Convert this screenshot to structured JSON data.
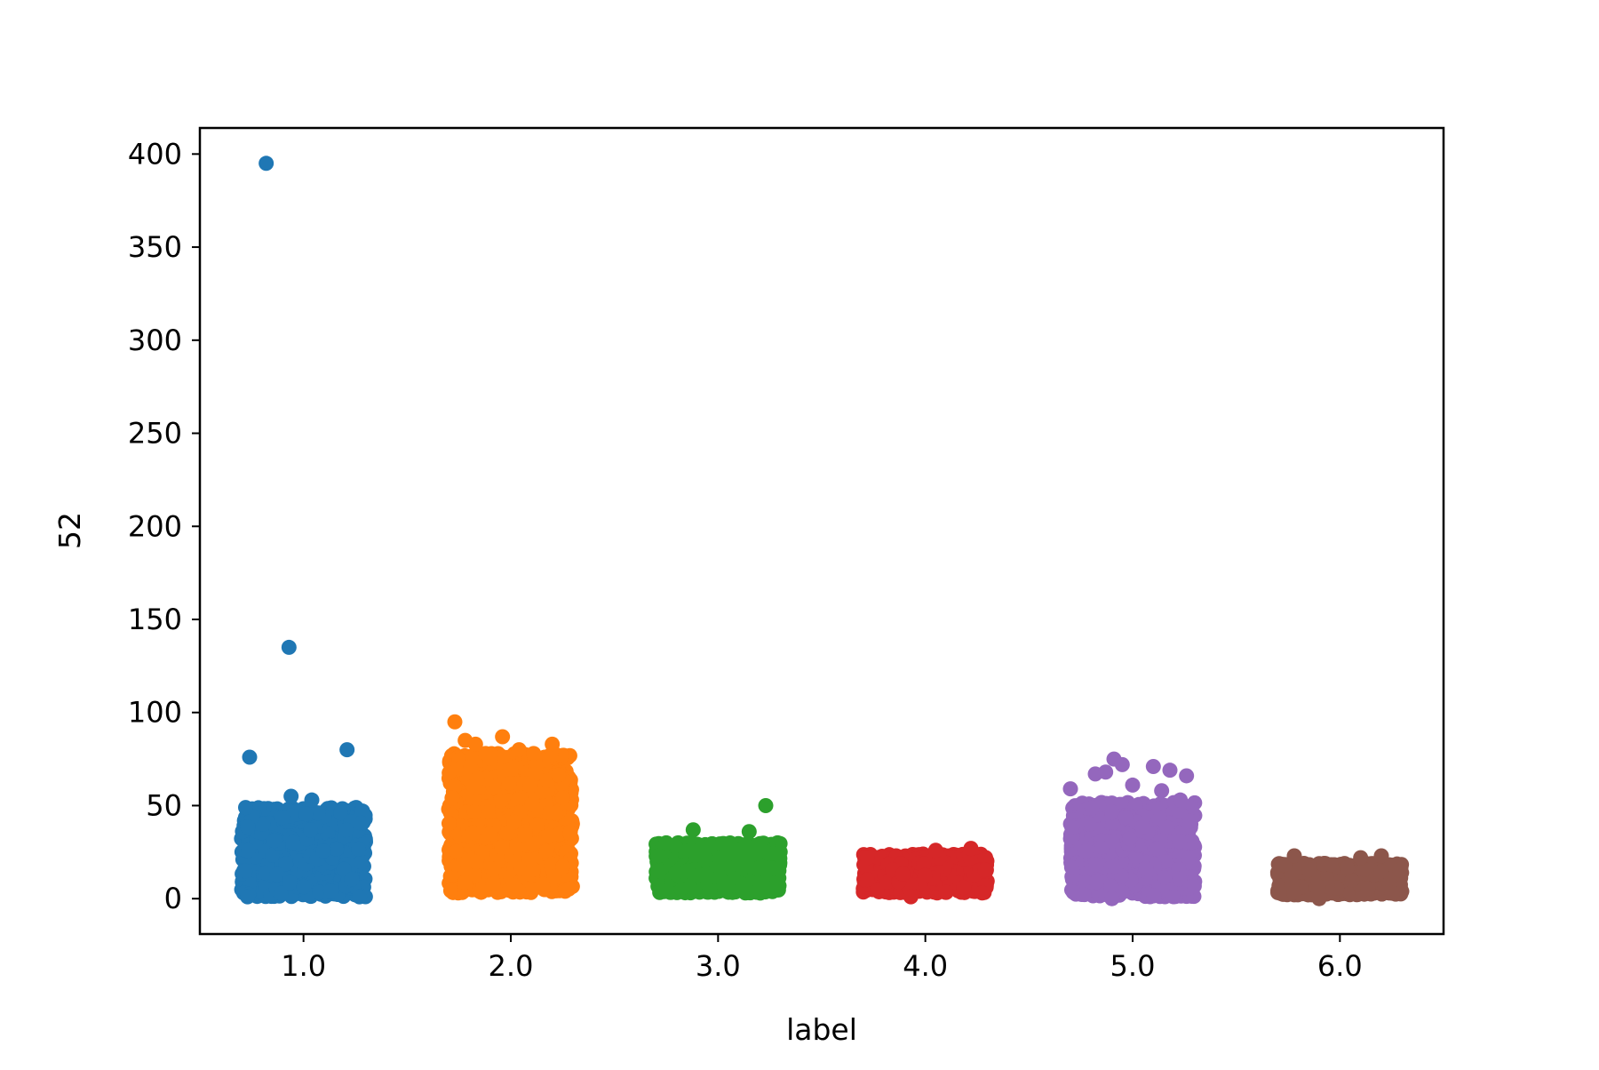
{
  "chart_data": {
    "type": "scatter",
    "title": "",
    "xlabel": "label",
    "ylabel": "52",
    "xlim": [
      0.5,
      6.5
    ],
    "ylim": [
      -19,
      414
    ],
    "grid": false,
    "legend": "none",
    "x_ticks": [
      {
        "value": 1,
        "label": "1.0"
      },
      {
        "value": 2,
        "label": "2.0"
      },
      {
        "value": 3,
        "label": "3.0"
      },
      {
        "value": 4,
        "label": "4.0"
      },
      {
        "value": 5,
        "label": "5.0"
      },
      {
        "value": 6,
        "label": "6.0"
      }
    ],
    "y_ticks": [
      {
        "value": 0,
        "label": "0"
      },
      {
        "value": 50,
        "label": "50"
      },
      {
        "value": 100,
        "label": "100"
      },
      {
        "value": 150,
        "label": "150"
      },
      {
        "value": 200,
        "label": "200"
      },
      {
        "value": 250,
        "label": "250"
      },
      {
        "value": 300,
        "label": "300"
      },
      {
        "value": 350,
        "label": "350"
      },
      {
        "value": 400,
        "label": "400"
      }
    ],
    "jitter": 0.3,
    "groups": [
      {
        "category": 1.0,
        "color": "#1f77b4",
        "cluster": {
          "count": 700,
          "y_min": 1,
          "y_max": 49
        },
        "points": [
          {
            "x": 0.82,
            "y": 395
          },
          {
            "x": 0.93,
            "y": 135
          },
          {
            "x": 0.74,
            "y": 76
          },
          {
            "x": 1.21,
            "y": 80
          },
          {
            "x": 0.94,
            "y": 55
          },
          {
            "x": 1.04,
            "y": 53
          },
          {
            "x": 1.27,
            "y": 1
          },
          {
            "x": 0.73,
            "y": 1
          }
        ]
      },
      {
        "category": 2.0,
        "color": "#ff7f0e",
        "cluster": {
          "count": 1200,
          "y_min": 3,
          "y_max": 78
        },
        "points": [
          {
            "x": 1.73,
            "y": 95
          },
          {
            "x": 1.78,
            "y": 85
          },
          {
            "x": 1.83,
            "y": 83
          },
          {
            "x": 1.96,
            "y": 87
          },
          {
            "x": 2.04,
            "y": 80
          },
          {
            "x": 2.2,
            "y": 83
          },
          {
            "x": 2.11,
            "y": 78
          }
        ]
      },
      {
        "category": 3.0,
        "color": "#2ca02c",
        "cluster": {
          "count": 600,
          "y_min": 3,
          "y_max": 30
        },
        "points": [
          {
            "x": 3.23,
            "y": 50
          },
          {
            "x": 2.88,
            "y": 37
          },
          {
            "x": 3.15,
            "y": 36
          },
          {
            "x": 2.75,
            "y": 30
          }
        ]
      },
      {
        "category": 4.0,
        "color": "#d62728",
        "cluster": {
          "count": 500,
          "y_min": 3,
          "y_max": 24
        },
        "points": [
          {
            "x": 3.93,
            "y": 1
          },
          {
            "x": 4.22,
            "y": 27
          },
          {
            "x": 4.05,
            "y": 26
          }
        ]
      },
      {
        "category": 5.0,
        "color": "#9467bd",
        "cluster": {
          "count": 900,
          "y_min": 1,
          "y_max": 52
        },
        "points": [
          {
            "x": 4.82,
            "y": 67
          },
          {
            "x": 4.87,
            "y": 68
          },
          {
            "x": 4.91,
            "y": 75
          },
          {
            "x": 4.95,
            "y": 72
          },
          {
            "x": 5.1,
            "y": 71
          },
          {
            "x": 5.26,
            "y": 66
          },
          {
            "x": 5.18,
            "y": 69
          },
          {
            "x": 5.0,
            "y": 61
          },
          {
            "x": 4.7,
            "y": 59
          },
          {
            "x": 5.14,
            "y": 58
          },
          {
            "x": 5.23,
            "y": 53
          },
          {
            "x": 4.9,
            "y": 0
          }
        ]
      },
      {
        "category": 6.0,
        "color": "#8c564b",
        "cluster": {
          "count": 600,
          "y_min": 2,
          "y_max": 19
        },
        "points": [
          {
            "x": 5.78,
            "y": 23
          },
          {
            "x": 6.1,
            "y": 22
          },
          {
            "x": 6.2,
            "y": 23
          },
          {
            "x": 5.9,
            "y": 0
          }
        ]
      }
    ]
  }
}
